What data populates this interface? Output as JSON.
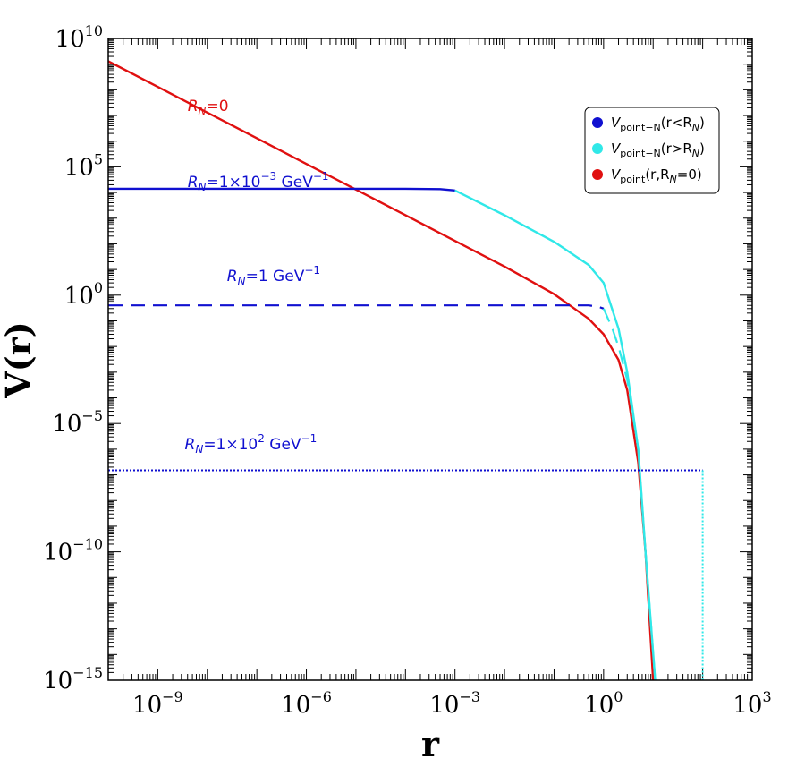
{
  "chart_data": {
    "type": "line",
    "xlabel": "r",
    "ylabel": "V(r)",
    "x_scale": "log",
    "y_scale": "log",
    "xlim": [
      1e-10,
      1000
    ],
    "ylim": [
      1e-15,
      10000000000.0
    ],
    "x_ticks": [
      {
        "base": "10",
        "exp": "−9",
        "value": 1e-09
      },
      {
        "base": "10",
        "exp": "−6",
        "value": 1e-06
      },
      {
        "base": "10",
        "exp": "−3",
        "value": 0.001
      },
      {
        "base": "10",
        "exp": "0",
        "value": 1
      },
      {
        "base": "10",
        "exp": "3",
        "value": 1000
      }
    ],
    "y_ticks": [
      {
        "base": "10",
        "exp": "10",
        "value": 10000000000.0
      },
      {
        "base": "10",
        "exp": "5",
        "value": 100000.0
      },
      {
        "base": "10",
        "exp": "0",
        "value": 1
      },
      {
        "base": "10",
        "exp": "−5",
        "value": 1e-05
      },
      {
        "base": "10",
        "exp": "−10",
        "value": 1e-10
      },
      {
        "base": "10",
        "exp": "−15",
        "value": 1e-15
      }
    ],
    "grid": false,
    "legend_position": "top-right",
    "legend": [
      {
        "main": "V",
        "sub": "point−N",
        "tail": "(r<R",
        "sub2": "N",
        "end": ")",
        "color": "#1010d0"
      },
      {
        "main": "V",
        "sub": "point−N",
        "tail": "(r>R",
        "sub2": "N",
        "end": ")",
        "color": "#30e8e8"
      },
      {
        "main": "V",
        "sub": "point",
        "tail": "(r,R",
        "sub2": "N",
        "end": "=0)",
        "color": "#e01010"
      }
    ],
    "annotations": [
      {
        "id": "rn0",
        "pre": "R",
        "sub": "N",
        "post": "=0",
        "sup": "",
        "color": "#e01010",
        "x": 4e-09,
        "y": 15000000.0
      },
      {
        "id": "rn1e-3",
        "pre": "R",
        "sub": "N",
        "post": "=1×10",
        "sup": "−3",
        "tail": " GeV",
        "sup2": "−1",
        "color": "#1010d0",
        "x": 4e-09,
        "y": 16000.0
      },
      {
        "id": "rn1",
        "pre": "R",
        "sub": "N",
        "post": "=1 GeV",
        "sup": "−1",
        "color": "#1010d0",
        "x": 2.5e-08,
        "y": 3.5
      },
      {
        "id": "rn1e2",
        "pre": "R",
        "sub": "N",
        "post": "=1×10",
        "sup": "2",
        "tail": " GeV",
        "sup2": "−1",
        "color": "#1010d0",
        "x": 3.5e-09,
        "y": 1e-06
      }
    ],
    "series": [
      {
        "label_id": "rn0",
        "style": "solid",
        "color": "#e01010",
        "points": [
          [
            1e-10,
            1300000000.0
          ],
          [
            1e-09,
            130000000.0
          ],
          [
            1e-08,
            13000000.0
          ],
          [
            1e-07,
            1300000.0
          ],
          [
            1e-06,
            130000.0
          ],
          [
            1e-05,
            13000.0
          ],
          [
            0.0001,
            1300
          ],
          [
            0.001,
            130
          ],
          [
            0.01,
            13
          ],
          [
            0.1,
            1.1
          ],
          [
            0.5,
            0.12
          ],
          [
            1,
            0.03
          ],
          [
            2,
            0.003
          ],
          [
            3,
            0.0002
          ],
          [
            5,
            3e-07
          ],
          [
            7,
            1e-10
          ],
          [
            10,
            1e-15
          ]
        ]
      },
      {
        "label_id": "rn1e-3",
        "style": "solid",
        "segments": [
          {
            "color": "#1010d0",
            "points": [
              [
                1e-10,
                14000.0
              ],
              [
                0.0001,
                14000.0
              ],
              [
                0.0005,
                13500.0
              ],
              [
                0.001,
                12000.0
              ]
            ]
          },
          {
            "color": "#30e8e8",
            "points": [
              [
                0.001,
                12000.0
              ],
              [
                0.01,
                1300
              ],
              [
                0.1,
                120
              ],
              [
                0.5,
                15
              ],
              [
                1,
                3
              ],
              [
                2,
                0.05
              ],
              [
                3,
                0.001
              ],
              [
                5,
                1e-06
              ],
              [
                7,
                1e-10
              ],
              [
                11,
                1e-15
              ]
            ]
          }
        ]
      },
      {
        "label_id": "rn1",
        "style": "dashed",
        "segments": [
          {
            "color": "#1010d0",
            "points": [
              [
                1e-10,
                0.4
              ],
              [
                0.5,
                0.4
              ],
              [
                0.8,
                0.35
              ],
              [
                1,
                0.3
              ]
            ]
          },
          {
            "color": "#30e8e8",
            "points": [
              [
                1,
                0.3
              ],
              [
                1.5,
                0.05
              ],
              [
                2,
                0.01
              ],
              [
                3,
                0.0005
              ],
              [
                5,
                1e-06
              ],
              [
                7,
                1e-10
              ],
              [
                11,
                1e-15
              ]
            ]
          }
        ]
      },
      {
        "label_id": "rn1e2",
        "style": "dotted",
        "segments": [
          {
            "color": "#1010d0",
            "points": [
              [
                1e-10,
                1.5e-07
              ],
              [
                100,
                1.5e-07
              ]
            ]
          },
          {
            "color": "#30e8e8",
            "points": [
              [
                100,
                1.5e-07
              ],
              [
                100,
                1e-15
              ]
            ]
          }
        ]
      }
    ]
  }
}
